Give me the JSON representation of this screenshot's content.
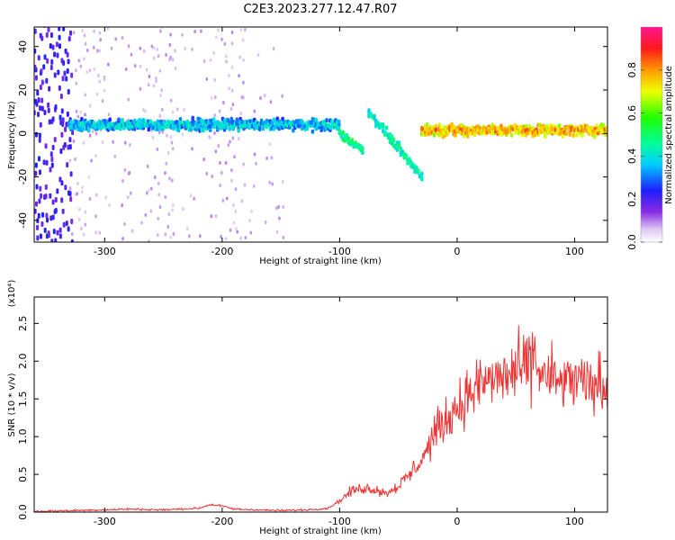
{
  "figure": {
    "title": "C2E3.2023.277.12.47.R07"
  },
  "chart_data": [
    {
      "type": "heatmap",
      "xlabel": "Height of straight line (km)",
      "ylabel": "Frequency (Hz)",
      "xlim": [
        -360,
        128
      ],
      "ylim": [
        -50,
        49
      ],
      "x_ticks": [
        -300,
        -200,
        -100,
        0,
        100
      ],
      "x_tick_labels": [
        "-300",
        "-200",
        "-100",
        "0",
        "100"
      ],
      "y_ticks": [
        -40,
        -20,
        0,
        20,
        40
      ],
      "y_tick_labels": [
        "-40",
        "-20",
        "0",
        "20",
        "40"
      ],
      "colorbar": {
        "label": "Normalized spectral amplitude",
        "range": [
          0,
          1
        ],
        "ticks": [
          0.0,
          0.2,
          0.4,
          0.6,
          0.8
        ],
        "tick_labels": [
          "0.0",
          "0.2",
          "0.4",
          "0.6",
          "0.8"
        ],
        "colormap": "rainbow (purple-blue-cyan-green-yellow-orange-red)"
      },
      "features": [
        {
          "name": "broadband noise",
          "x_range": [
            -360,
            -330
          ],
          "amplitude": 0.15
        },
        {
          "name": "scattered noise bands",
          "x_range": [
            -330,
            -150
          ],
          "amplitude": 0.05
        },
        {
          "name": "main echo band",
          "x_range": [
            -330,
            -100
          ],
          "frequency_hz": 4,
          "amplitude": 0.3
        },
        {
          "name": "descending echo",
          "x_range": [
            -100,
            -80
          ],
          "frequency_hz_from": 0,
          "frequency_hz_to": -8,
          "amplitude": 0.4
        },
        {
          "name": "secondary echo",
          "x_range": [
            -75,
            -30
          ],
          "frequency_hz_from": 10,
          "frequency_hz_to": -20,
          "amplitude": 0.35
        },
        {
          "name": "stable echo band",
          "x_range": [
            -30,
            128
          ],
          "frequency_hz": 1.5,
          "amplitude": 0.7
        }
      ],
      "grid": false,
      "legend": "colorbar right"
    },
    {
      "type": "line",
      "xlabel": "Height of straight line (km)",
      "ylabel": "SNR (10 * v/v)",
      "y_multiplier": "(x10⁴)",
      "xlim": [
        -360,
        128
      ],
      "ylim": [
        0,
        2.85
      ],
      "x_ticks": [
        -300,
        -200,
        -100,
        0,
        100
      ],
      "x_tick_labels": [
        "-300",
        "-200",
        "-100",
        "0",
        "100"
      ],
      "y_ticks": [
        0.0,
        0.5,
        1.0,
        1.5,
        2.0,
        2.5
      ],
      "y_tick_labels": [
        "0.0",
        "0.5",
        "1.0",
        "1.5",
        "2.0",
        "2.5"
      ],
      "series": [
        {
          "color": "#ee3333",
          "x": [
            -360,
            -330,
            -300,
            -280,
            -250,
            -220,
            -210,
            -200,
            -190,
            -170,
            -150,
            -130,
            -110,
            -100,
            -90,
            -80,
            -70,
            -60,
            -50,
            -40,
            -30,
            -20,
            -15,
            -10,
            -5,
            0,
            10,
            20,
            30,
            40,
            50,
            60,
            65,
            70,
            80,
            90,
            100,
            110,
            120,
            128
          ],
          "y": [
            0.01,
            0.02,
            0.03,
            0.04,
            0.03,
            0.05,
            0.1,
            0.08,
            0.04,
            0.03,
            0.02,
            0.03,
            0.05,
            0.15,
            0.28,
            0.32,
            0.3,
            0.25,
            0.35,
            0.5,
            0.7,
            1.0,
            1.15,
            1.2,
            1.3,
            1.4,
            1.55,
            1.7,
            1.75,
            1.8,
            1.85,
            1.9,
            2.1,
            1.85,
            1.75,
            1.7,
            1.75,
            1.65,
            1.7,
            1.65
          ]
        }
      ],
      "grid": false
    }
  ]
}
